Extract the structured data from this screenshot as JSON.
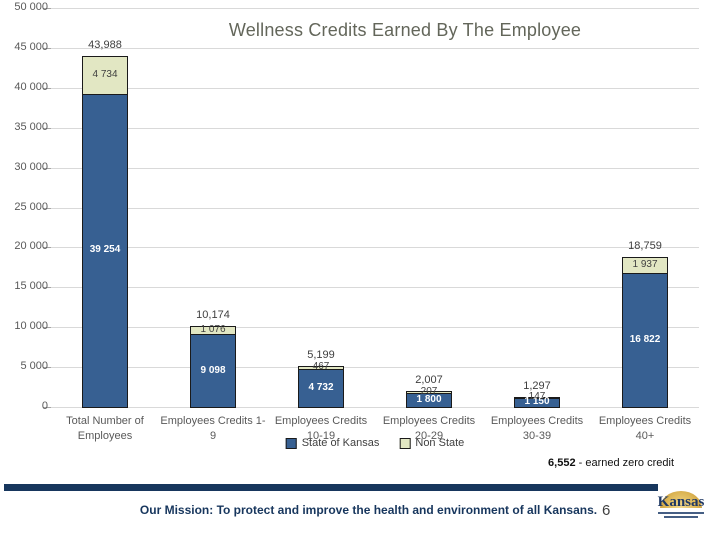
{
  "slide": {
    "zero_credit_value": "6,552",
    "zero_credit_text": " - earned zero credit",
    "footer": {
      "mission": "Our Mission: To protect and improve the health and environment of all Kansans.",
      "page_number": "6",
      "logo_text": "Kansas",
      "bar_color": "#17365d",
      "logo_gold": "#c3912f"
    }
  },
  "chart_data": {
    "type": "bar",
    "stacked": true,
    "title": "Wellness Credits Earned By The Employee",
    "categories": [
      "Total Number of Employees",
      "Employees Credits 1-9",
      "Employees Credits 10-19",
      "Employees Credits 20-29",
      "Employees Credits 30-39",
      "Employees Credits 40+"
    ],
    "series": [
      {
        "name": "State of Kansas",
        "color": "#376092",
        "values": [
          39254,
          9098,
          4732,
          1800,
          1150,
          16822
        ],
        "labels": [
          "39 254",
          "9 098",
          "4 732",
          "1 800",
          "1 150",
          "16 822"
        ]
      },
      {
        "name": "Non State",
        "color": "#e2e7c3",
        "values": [
          4734,
          1076,
          467,
          207,
          147,
          1937
        ],
        "labels": [
          "4 734",
          "1 076",
          "467",
          "207",
          "147",
          "1 937"
        ]
      }
    ],
    "totals": [
      43988,
      10174,
      5199,
      2007,
      1297,
      18759
    ],
    "total_labels": [
      "43,988",
      "10,174",
      "5,199",
      "2,007",
      "1,297",
      "18,759"
    ],
    "ylim": [
      0,
      50000
    ],
    "ytick_step": 5000,
    "ytick_labels": [
      "0",
      "5 000",
      "10 000",
      "15 000",
      "20 000",
      "25 000",
      "30 000",
      "35 000",
      "40 000",
      "45 000",
      "50 000"
    ],
    "grid": true,
    "grid_color": "#d9d9d9",
    "legend_position": "bottom-center"
  }
}
